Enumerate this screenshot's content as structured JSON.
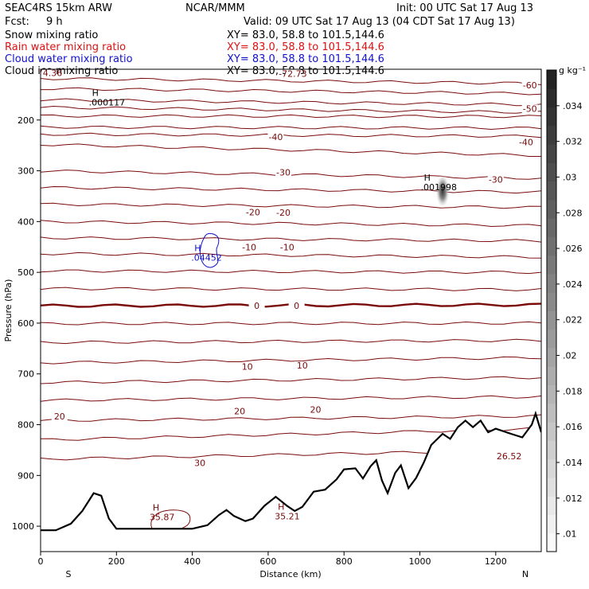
{
  "header": {
    "model": "SEAC4RS 15km ARW",
    "center": "NCAR/MMM",
    "init": "Init: 00 UTC Sat 17 Aug 13",
    "fcst_label": "Fcst:",
    "fcst_value": "9 h",
    "valid": "Valid: 09 UTC Sat 17 Aug 13 (04 CDT Sat 17 Aug 13)"
  },
  "legend": [
    {
      "label": "Snow mixing ratio",
      "xy": "XY=  83.0, 58.8 to 101.5,144.6",
      "color": "#000000"
    },
    {
      "label": "Rain water mixing ratio",
      "xy": "XY=  83.0, 58.8 to 101.5,144.6",
      "color": "#dd1111"
    },
    {
      "label": "Cloud water mixing ratio",
      "xy": "XY=  83.0, 58.8 to 101.5,144.6",
      "color": "#1111cc"
    },
    {
      "label": "Cloud ice mixing ratio",
      "xy": "XY=  83.0, 58.8 to 101.5,144.6",
      "color": "#000000"
    }
  ],
  "colorbar": {
    "unit": "g kg⁻¹",
    "ticks": [
      ".01",
      ".012",
      ".014",
      ".016",
      ".018",
      ".02",
      ".022",
      ".024",
      ".026",
      ".028",
      ".03",
      ".032",
      ".034"
    ],
    "range": [
      0.009,
      0.036
    ]
  },
  "chart_data": {
    "type": "contour",
    "xlabel": "Distance (km)",
    "ylabel": "Pressure (hPa)",
    "xlim": [
      0,
      1320
    ],
    "ylim": [
      1050,
      100
    ],
    "x_ticks": [
      0,
      200,
      400,
      600,
      800,
      1000,
      1200
    ],
    "y_ticks": [
      200,
      300,
      400,
      500,
      600,
      700,
      800,
      900,
      1000
    ],
    "endpoints": {
      "left": "S",
      "right": "N"
    },
    "temperature_isotherms": [
      {
        "label": "-60",
        "left_p": 118,
        "right_p": 128
      },
      {
        "label": "",
        "left_p": 138,
        "right_p": 148
      },
      {
        "label": "",
        "left_p": 160,
        "right_p": 170
      },
      {
        "label": "",
        "left_p": 175,
        "right_p": 185
      },
      {
        "label": "-50",
        "left_p": 192,
        "right_p": 193
      },
      {
        "label": "",
        "left_p": 214,
        "right_p": 216
      },
      {
        "label": "-40",
        "left_p": 228,
        "right_p": 232
      },
      {
        "label": "",
        "left_p": 248,
        "right_p": 270
      },
      {
        "label": "-30",
        "left_p": 300,
        "right_p": 315
      },
      {
        "label": "",
        "left_p": 333,
        "right_p": 342
      },
      {
        "label": "-20",
        "left_p": 366,
        "right_p": 372
      },
      {
        "label": "",
        "left_p": 400,
        "right_p": 408
      },
      {
        "label": "-10",
        "left_p": 432,
        "right_p": 438
      },
      {
        "label": "",
        "left_p": 463,
        "right_p": 470
      },
      {
        "label": "",
        "left_p": 497,
        "right_p": 500
      },
      {
        "label": "",
        "left_p": 532,
        "right_p": 534
      },
      {
        "label": "0",
        "left_p": 566,
        "right_p": 564
      },
      {
        "label": "",
        "left_p": 601,
        "right_p": 600
      },
      {
        "label": "",
        "left_p": 638,
        "right_p": 634
      },
      {
        "label": "10",
        "left_p": 678,
        "right_p": 668
      },
      {
        "label": "",
        "left_p": 717,
        "right_p": 707
      },
      {
        "label": "",
        "left_p": 752,
        "right_p": 745
      },
      {
        "label": "20",
        "left_p": 792,
        "right_p": 783
      },
      {
        "label": "",
        "left_p": 830,
        "right_p": 808
      },
      {
        "label": "30",
        "left_p": 868,
        "right_p": 850
      }
    ],
    "contour_labels": [
      {
        "text": "-74.36",
        "x": 20,
        "p": 112
      },
      {
        "text": "-72.73",
        "x": 665,
        "p": 113
      },
      {
        "text": "-60",
        "x": 1290,
        "p": 136
      },
      {
        "text": "-50",
        "x": 1290,
        "p": 182
      },
      {
        "text": "-40",
        "x": 1280,
        "p": 248
      },
      {
        "text": "-40",
        "x": 620,
        "p": 238
      },
      {
        "text": "-30",
        "x": 640,
        "p": 308
      },
      {
        "text": "-30",
        "x": 1200,
        "p": 322
      },
      {
        "text": "-20",
        "x": 560,
        "p": 386
      },
      {
        "text": "-20",
        "x": 640,
        "p": 387
      },
      {
        "text": "-10",
        "x": 550,
        "p": 455
      },
      {
        "text": "-10",
        "x": 650,
        "p": 455
      },
      {
        "text": "0",
        "x": 570,
        "p": 570
      },
      {
        "text": "0",
        "x": 675,
        "p": 570
      },
      {
        "text": "10",
        "x": 545,
        "p": 690
      },
      {
        "text": "10",
        "x": 690,
        "p": 688
      },
      {
        "text": "20",
        "x": 50,
        "p": 788
      },
      {
        "text": "20",
        "x": 525,
        "p": 778
      },
      {
        "text": "20",
        "x": 725,
        "p": 775
      },
      {
        "text": "30",
        "x": 420,
        "p": 880
      }
    ],
    "maxima": [
      {
        "mark": "H",
        "value": ".000117",
        "x": 165,
        "p": 168,
        "color": "#000000"
      },
      {
        "mark": "H",
        "value": ".001998",
        "x": 1040,
        "p": 335,
        "color": "#000000"
      },
      {
        "mark": "H",
        "value": ".04452",
        "x": 435,
        "p": 474,
        "color": "#1111cc"
      },
      {
        "text_only": true,
        "value": "26.52",
        "x": 1240,
        "p": 865,
        "color": "#7a0a0a"
      },
      {
        "mark": "H",
        "value": "35.87",
        "x": 325,
        "p": 985,
        "color": "#7a0a0a"
      },
      {
        "mark": "H",
        "value": "35.21",
        "x": 655,
        "p": 983,
        "color": "#7a0a0a"
      }
    ],
    "snow_max_shading": {
      "x": 1060,
      "p": 340,
      "value": 0.034
    },
    "terrain_surface_p": [
      [
        0,
        1008
      ],
      [
        40,
        1008
      ],
      [
        80,
        995
      ],
      [
        110,
        970
      ],
      [
        140,
        935
      ],
      [
        160,
        940
      ],
      [
        180,
        985
      ],
      [
        200,
        1005
      ],
      [
        300,
        1005
      ],
      [
        400,
        1005
      ],
      [
        440,
        998
      ],
      [
        470,
        978
      ],
      [
        490,
        968
      ],
      [
        510,
        980
      ],
      [
        540,
        990
      ],
      [
        560,
        985
      ],
      [
        590,
        960
      ],
      [
        620,
        942
      ],
      [
        650,
        960
      ],
      [
        670,
        970
      ],
      [
        690,
        962
      ],
      [
        720,
        932
      ],
      [
        750,
        928
      ],
      [
        780,
        908
      ],
      [
        800,
        888
      ],
      [
        830,
        886
      ],
      [
        850,
        906
      ],
      [
        870,
        882
      ],
      [
        885,
        870
      ],
      [
        900,
        910
      ],
      [
        915,
        935
      ],
      [
        935,
        895
      ],
      [
        950,
        880
      ],
      [
        970,
        925
      ],
      [
        990,
        905
      ],
      [
        1010,
        875
      ],
      [
        1030,
        840
      ],
      [
        1060,
        818
      ],
      [
        1080,
        828
      ],
      [
        1100,
        805
      ],
      [
        1120,
        792
      ],
      [
        1140,
        805
      ],
      [
        1160,
        792
      ],
      [
        1180,
        815
      ],
      [
        1200,
        808
      ],
      [
        1240,
        818
      ],
      [
        1270,
        825
      ],
      [
        1295,
        800
      ],
      [
        1305,
        778
      ],
      [
        1320,
        815
      ]
    ]
  }
}
